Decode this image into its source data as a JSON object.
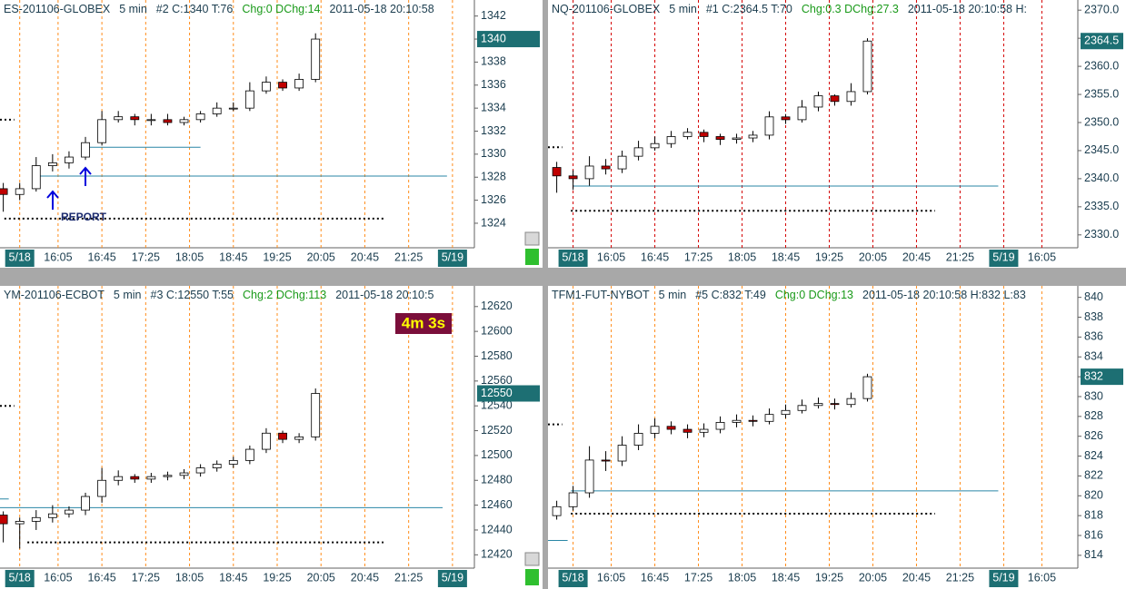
{
  "panels": [
    {
      "type": "candlestick",
      "instrument": "ES-201106-GLOBEX",
      "interval": "5 min",
      "stats": "#2 C:1340 T:76",
      "change": "Chg:0 DChg:14",
      "timestamp": "2011-05-18 20:10:58",
      "last": 1340,
      "grid_color": "#ff8c1a",
      "up_color": "#ffffff",
      "down_color": "#c00000",
      "ylim": [
        1322.5,
        1343
      ],
      "yticks": [
        1324,
        1326,
        1328,
        1330,
        1332,
        1334,
        1336,
        1338,
        1340,
        1342
      ],
      "xlim": [
        912,
        1345
      ],
      "xticks": [
        {
          "value": 930,
          "label": "5/18"
        },
        {
          "value": 965,
          "label": "16:05"
        },
        {
          "value": 1005,
          "label": "16:45"
        },
        {
          "value": 1045,
          "label": "17:25"
        },
        {
          "value": 1085,
          "label": "18:05"
        },
        {
          "value": 1125,
          "label": "18:45"
        },
        {
          "value": 1165,
          "label": "19:25"
        },
        {
          "value": 1205,
          "label": "20:05"
        },
        {
          "value": 1245,
          "label": "20:45"
        },
        {
          "value": 1285,
          "label": "21:25"
        },
        {
          "value": 1325,
          "label": "5/19"
        }
      ],
      "x": [
        915,
        930,
        945,
        960,
        975,
        990,
        1005,
        1020,
        1035,
        1050,
        1065,
        1080,
        1095,
        1110,
        1125,
        1140,
        1155,
        1170,
        1185,
        1200
      ],
      "open": [
        1327.0,
        1326.5,
        1327.0,
        1329.0,
        1329.25,
        1329.75,
        1331.0,
        1333.0,
        1333.25,
        1333.0,
        1333.0,
        1332.75,
        1333.0,
        1333.5,
        1334.0,
        1334.0,
        1335.5,
        1336.25,
        1335.75,
        1336.5
      ],
      "high": [
        1327.5,
        1327.5,
        1329.75,
        1330.0,
        1330.25,
        1331.5,
        1333.75,
        1333.75,
        1333.5,
        1333.5,
        1333.5,
        1333.25,
        1333.75,
        1334.5,
        1334.5,
        1336.25,
        1336.75,
        1336.5,
        1337.0,
        1340.5
      ],
      "low": [
        1325.0,
        1326.0,
        1326.75,
        1328.5,
        1328.75,
        1329.5,
        1330.75,
        1332.75,
        1332.5,
        1332.5,
        1332.5,
        1332.5,
        1332.75,
        1333.25,
        1333.75,
        1333.75,
        1335.25,
        1335.5,
        1335.5,
        1336.25
      ],
      "close": [
        1326.5,
        1327.0,
        1329.0,
        1329.25,
        1329.75,
        1331.0,
        1333.0,
        1333.25,
        1333.0,
        1333.0,
        1332.75,
        1333.0,
        1333.5,
        1334.0,
        1334.0,
        1335.5,
        1336.25,
        1335.75,
        1336.5,
        1340.0
      ],
      "levels": [
        {
          "value": 1328.1,
          "from": 945,
          "to": 1320,
          "style": "solid"
        },
        {
          "value": 1330.6,
          "from": 991,
          "to": 1095,
          "style": "solid"
        },
        {
          "value": 1324.4,
          "from": 916,
          "to": 1262,
          "style": "dotted"
        },
        {
          "value": 1333.0,
          "from": 912,
          "to": 925,
          "style": "dotted"
        }
      ],
      "annotation": "REPORT"
    },
    {
      "type": "candlestick",
      "instrument": "NQ-201106-GLOBEX",
      "interval": "5 min",
      "stats": "#1 C:2364.5 T:70",
      "change": "Chg:0.3 DChg:27.3",
      "timestamp": "2011-05-18 20:10:58 H:",
      "last": 2364.5,
      "grid_color": "#d40000",
      "up_color": "#ffffff",
      "down_color": "#c00000",
      "ylim": [
        2329,
        2371
      ],
      "yticks": [
        {
          "value": 2330,
          "label": "2330.0"
        },
        {
          "value": 2335,
          "label": "2335.0"
        },
        {
          "value": 2340,
          "label": "2340.0"
        },
        {
          "value": 2345,
          "label": "2345.0"
        },
        {
          "value": 2350,
          "label": "2350.0"
        },
        {
          "value": 2355,
          "label": "2355.0"
        },
        {
          "value": 2360,
          "label": "2360.0"
        },
        {
          "value": 2365,
          "label": "2365.0"
        },
        {
          "value": 2370,
          "label": "2370.0"
        }
      ],
      "xlim": [
        907,
        1393
      ],
      "xticks": [
        {
          "value": 930,
          "label": "5/18"
        },
        {
          "value": 965,
          "label": "16:05"
        },
        {
          "value": 1005,
          "label": "16:45"
        },
        {
          "value": 1045,
          "label": "17:25"
        },
        {
          "value": 1085,
          "label": "18:05"
        },
        {
          "value": 1125,
          "label": "18:45"
        },
        {
          "value": 1165,
          "label": "19:25"
        },
        {
          "value": 1205,
          "label": "20:05"
        },
        {
          "value": 1245,
          "label": "20:45"
        },
        {
          "value": 1285,
          "label": "21:25"
        },
        {
          "value": 1325,
          "label": "5/19"
        },
        {
          "value": 1360,
          "label": "16:05"
        }
      ],
      "x": [
        915,
        930,
        945,
        960,
        975,
        990,
        1005,
        1020,
        1035,
        1050,
        1065,
        1080,
        1095,
        1110,
        1125,
        1140,
        1155,
        1170,
        1185,
        1200
      ],
      "open": [
        2342.0,
        2340.5,
        2340.0,
        2342.25,
        2341.75,
        2344.0,
        2345.5,
        2346.25,
        2347.5,
        2348.25,
        2347.5,
        2347.0,
        2347.25,
        2347.75,
        2351.0,
        2350.5,
        2352.75,
        2354.75,
        2353.75,
        2355.5
      ],
      "high": [
        2343.0,
        2341.5,
        2344.0,
        2343.5,
        2345.0,
        2346.75,
        2347.5,
        2348.5,
        2349.0,
        2348.75,
        2348.0,
        2348.0,
        2348.5,
        2352.0,
        2351.5,
        2354.0,
        2355.5,
        2355.0,
        2357.0,
        2365.0
      ],
      "low": [
        2337.5,
        2338.0,
        2338.75,
        2340.75,
        2341.0,
        2343.25,
        2345.0,
        2345.5,
        2347.0,
        2346.5,
        2346.0,
        2346.25,
        2346.5,
        2347.0,
        2349.75,
        2350.0,
        2352.0,
        2353.0,
        2353.0,
        2355.0
      ],
      "close": [
        2340.5,
        2340.0,
        2342.25,
        2341.75,
        2344.0,
        2345.5,
        2346.25,
        2347.5,
        2348.25,
        2347.5,
        2347.0,
        2347.25,
        2347.75,
        2351.0,
        2350.5,
        2352.75,
        2354.75,
        2353.75,
        2355.5,
        2364.5
      ],
      "levels": [
        {
          "value": 2338.7,
          "from": 930,
          "to": 1320,
          "style": "solid"
        },
        {
          "value": 2334.3,
          "from": 928,
          "to": 1262,
          "style": "dotted"
        },
        {
          "value": 2345.6,
          "from": 907,
          "to": 920,
          "style": "dotted"
        }
      ]
    },
    {
      "type": "candlestick",
      "instrument": "YM-201106-ECBOT",
      "interval": "5 min",
      "stats": "#3 C:12550 T:55",
      "change": "Chg:2 DChg:113",
      "timestamp": "2011-05-18 20:10:5",
      "last": 12550,
      "grid_color": "#ff8c1a",
      "up_color": "#ffffff",
      "down_color": "#c00000",
      "timer": "4m 3s",
      "ylim": [
        12410,
        12633
      ],
      "yticks": [
        12420,
        12440,
        12460,
        12480,
        12500,
        12520,
        12540,
        12560,
        12580,
        12600,
        12620
      ],
      "xlim": [
        912,
        1345
      ],
      "xticks": [
        {
          "value": 930,
          "label": "5/18"
        },
        {
          "value": 965,
          "label": "16:05"
        },
        {
          "value": 1005,
          "label": "16:45"
        },
        {
          "value": 1045,
          "label": "17:25"
        },
        {
          "value": 1085,
          "label": "18:05"
        },
        {
          "value": 1125,
          "label": "18:45"
        },
        {
          "value": 1165,
          "label": "19:25"
        },
        {
          "value": 1205,
          "label": "20:05"
        },
        {
          "value": 1245,
          "label": "20:45"
        },
        {
          "value": 1285,
          "label": "21:25"
        },
        {
          "value": 1325,
          "label": "5/19"
        }
      ],
      "x": [
        915,
        930,
        945,
        960,
        975,
        990,
        1005,
        1020,
        1035,
        1050,
        1065,
        1080,
        1095,
        1110,
        1125,
        1140,
        1155,
        1170,
        1185,
        1200
      ],
      "open": [
        12452,
        12445,
        12447,
        12450,
        12453,
        12456,
        12467,
        12480,
        12483,
        12481,
        12483,
        12484,
        12486,
        12490,
        12493,
        12496,
        12505,
        12518,
        12513,
        12515
      ],
      "high": [
        12455,
        12450,
        12456,
        12460,
        12459,
        12470,
        12490,
        12488,
        12485,
        12486,
        12487,
        12489,
        12493,
        12496,
        12499,
        12508,
        12522,
        12520,
        12518,
        12554
      ],
      "low": [
        12430,
        12425,
        12440,
        12446,
        12450,
        12452,
        12462,
        12476,
        12478,
        12478,
        12480,
        12481,
        12483,
        12487,
        12490,
        12493,
        12502,
        12510,
        12510,
        12512
      ],
      "close": [
        12445,
        12447,
        12450,
        12453,
        12456,
        12467,
        12480,
        12483,
        12481,
        12483,
        12484,
        12486,
        12490,
        12493,
        12496,
        12505,
        12518,
        12513,
        12515,
        12550
      ],
      "levels": [
        {
          "value": 12458,
          "from": 912,
          "to": 1316,
          "style": "solid"
        },
        {
          "value": 12430,
          "from": 937,
          "to": 1262,
          "style": "dotted"
        },
        {
          "value": 12540,
          "from": 912,
          "to": 925,
          "style": "dotted"
        },
        {
          "value": 12465,
          "from": 912,
          "to": 920,
          "style": "solid"
        }
      ]
    },
    {
      "type": "candlestick",
      "instrument": "TFM1-FUT-NYBOT",
      "interval": "5 min",
      "stats": "#5 C:832 T:49",
      "change": "Chg:0 DChg:13",
      "timestamp": "2011-05-18 20:10:58 H:832 L:83",
      "last": 832,
      "grid_color": "#ff8c1a",
      "up_color": "#ffffff",
      "down_color": "#c00000",
      "ylim": [
        812.8,
        840.7
      ],
      "yticks": [
        814,
        816,
        818,
        820,
        822,
        824,
        826,
        828,
        830,
        832,
        834,
        836,
        838,
        840
      ],
      "xlim": [
        907,
        1393
      ],
      "xticks": [
        {
          "value": 930,
          "label": "5/18"
        },
        {
          "value": 965,
          "label": "16:05"
        },
        {
          "value": 1005,
          "label": "16:45"
        },
        {
          "value": 1045,
          "label": "17:25"
        },
        {
          "value": 1085,
          "label": "18:05"
        },
        {
          "value": 1125,
          "label": "18:45"
        },
        {
          "value": 1165,
          "label": "19:25"
        },
        {
          "value": 1205,
          "label": "20:05"
        },
        {
          "value": 1245,
          "label": "20:45"
        },
        {
          "value": 1285,
          "label": "21:25"
        },
        {
          "value": 1325,
          "label": "5/19"
        },
        {
          "value": 1360,
          "label": "16:05"
        }
      ],
      "x": [
        915,
        930,
        945,
        960,
        975,
        990,
        1005,
        1020,
        1035,
        1050,
        1065,
        1080,
        1095,
        1110,
        1125,
        1140,
        1155,
        1170,
        1185,
        1200
      ],
      "open": [
        818.0,
        818.9,
        820.3,
        823.6,
        823.5,
        825.1,
        826.3,
        827.0,
        826.7,
        826.4,
        826.7,
        827.4,
        827.6,
        827.5,
        828.2,
        828.6,
        829.1,
        829.3,
        829.2,
        829.8
      ],
      "high": [
        819.5,
        821.0,
        825.0,
        824.5,
        826.0,
        827.2,
        827.8,
        827.5,
        827.2,
        827.3,
        828.0,
        828.2,
        828.1,
        828.8,
        829.2,
        829.7,
        829.9,
        829.8,
        830.4,
        832.3
      ],
      "low": [
        817.6,
        818.5,
        819.8,
        822.5,
        823.0,
        824.6,
        825.8,
        826.2,
        825.8,
        825.9,
        826.3,
        826.9,
        827.0,
        827.2,
        827.8,
        828.3,
        828.8,
        828.7,
        828.9,
        829.5
      ],
      "close": [
        818.9,
        820.3,
        823.6,
        823.5,
        825.1,
        826.3,
        827.0,
        826.7,
        826.4,
        826.7,
        827.4,
        827.6,
        827.5,
        828.2,
        828.6,
        829.1,
        829.3,
        829.2,
        829.8,
        832.0
      ],
      "levels": [
        {
          "value": 820.5,
          "from": 928,
          "to": 1320,
          "style": "solid"
        },
        {
          "value": 818.2,
          "from": 928,
          "to": 1262,
          "style": "dotted"
        },
        {
          "value": 827.2,
          "from": 907,
          "to": 920,
          "style": "dotted"
        },
        {
          "value": 815.5,
          "from": 907,
          "to": 925,
          "style": "solid"
        }
      ]
    }
  ]
}
